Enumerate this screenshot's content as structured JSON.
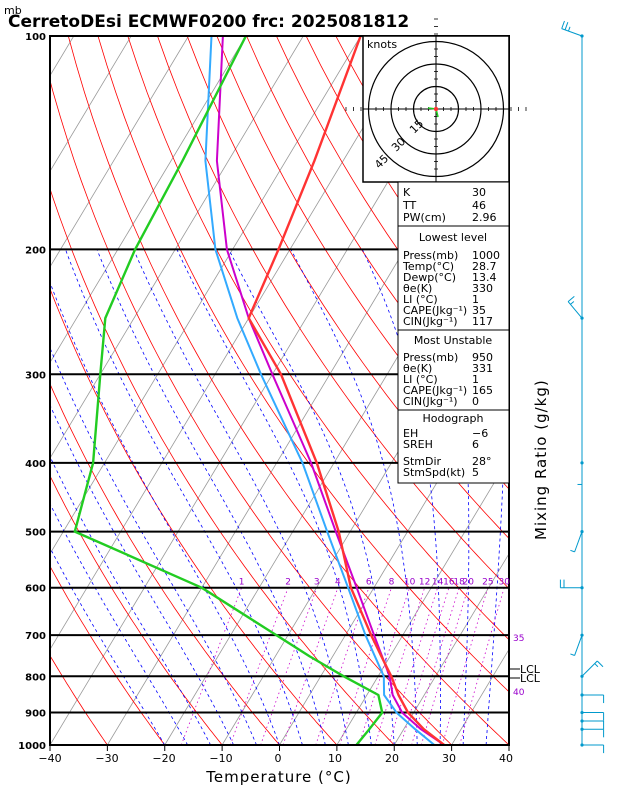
{
  "header": {
    "mb": "mb",
    "title": "CerretoDEsi ECMWF0200  frc: 2025081812"
  },
  "chart_data": {
    "type": "skew-t",
    "xlabel": "Temperature (°C)",
    "right_label": "Mixing Ratio (g/kg)",
    "xlim": [
      -40,
      40
    ],
    "x_ticks": [
      "−40",
      "−30",
      "−20",
      "−10",
      "0",
      "10",
      "20",
      "30",
      "40"
    ],
    "p_levels": [
      100,
      200,
      300,
      400,
      500,
      600,
      700,
      800,
      900,
      1000
    ],
    "p_labels": [
      "100",
      "200",
      "300",
      "400",
      "500",
      "600",
      "700",
      "800",
      "900",
      "1000"
    ],
    "temperature": {
      "p": [
        1000,
        950,
        900,
        850,
        800,
        750,
        700,
        600,
        500,
        400,
        300,
        250,
        200,
        150,
        100
      ],
      "t": [
        28.7,
        23.5,
        19.0,
        15.5,
        12.3,
        8.5,
        4.5,
        -4.0,
        -12.0,
        -23.0,
        -38.5,
        -50.0,
        -52.0,
        -55.0,
        -60.0
      ]
    },
    "dewpoint": {
      "p": [
        1000,
        950,
        900,
        850,
        800,
        750,
        700,
        600,
        500,
        400,
        300,
        250,
        200,
        150,
        100
      ],
      "t": [
        13.4,
        14.0,
        14.5,
        12.0,
        4.0,
        -4.0,
        -12.0,
        -30.0,
        -58.0,
        -62.0,
        -70.0,
        -75.0,
        -77.0,
        -78.0,
        -80.0
      ]
    },
    "parcel": {
      "p": [
        1000,
        950,
        900,
        850,
        800,
        700,
        600,
        500,
        400,
        300,
        250,
        200,
        150,
        100
      ],
      "t": [
        28.7,
        23.0,
        18.0,
        14.5,
        12.0,
        5.0,
        -3.0,
        -12.5,
        -24.0,
        -40.0,
        -50.0,
        -61.0,
        -72.0,
        -84.0
      ]
    },
    "parcel2": {
      "p": [
        1000,
        950,
        900,
        850,
        800,
        700,
        600,
        500,
        400,
        300,
        250,
        200,
        150,
        100
      ],
      "t": [
        27.0,
        22.0,
        17.0,
        13.0,
        11.0,
        3.5,
        -4.5,
        -14.0,
        -25.5,
        -42.0,
        -52.0,
        -63.0,
        -74.0,
        -86.0
      ]
    },
    "mixing_ratio_labels": [
      "1",
      "2",
      "3",
      "4",
      "6",
      "8",
      "10",
      "12",
      "14",
      "16",
      "18",
      "20",
      "25",
      "30"
    ],
    "mixing_ratio_values": [
      1,
      2,
      3,
      4,
      6,
      8,
      10,
      12,
      14,
      16,
      18,
      20,
      25,
      30
    ],
    "theta_e_labels": [
      "35",
      "40"
    ],
    "lcl_labels": [
      "LCL",
      "LCL"
    ],
    "hodograph": {
      "units": "knots",
      "ring_labels": [
        "15",
        "30",
        "45"
      ],
      "ring_values": [
        15,
        30,
        45
      ]
    },
    "wind_barbs": {
      "p": [
        100,
        250,
        400,
        500,
        600,
        700,
        800,
        850,
        900,
        925,
        950,
        1000
      ],
      "speed_kt": [
        25,
        15,
        5,
        5,
        20,
        5,
        15,
        10,
        10,
        10,
        10,
        10
      ],
      "direction_deg": [
        290,
        320,
        180,
        200,
        270,
        200,
        45,
        90,
        90,
        90,
        90,
        90
      ]
    }
  },
  "stats": {
    "K_label": "K",
    "K": "30",
    "TT_label": "TT",
    "TT": "46",
    "PW_label": "PW(cm)",
    "PW": "2.96",
    "lowest_title": "Lowest level",
    "lowest": [
      {
        "label": "Press(mb)",
        "value": "1000"
      },
      {
        "label": "Temp(°C)",
        "value": "28.7"
      },
      {
        "label": "Dewp(°C)",
        "value": "13.4"
      },
      {
        "label": "θe(K)",
        "value": "330"
      },
      {
        "label": "LI (°C)",
        "value": "1"
      },
      {
        "label": "CAPE(Jkg⁻¹)",
        "value": "35"
      },
      {
        "label": "CIN(Jkg⁻¹)",
        "value": "117"
      }
    ],
    "mu_title": "Most Unstable",
    "mu": [
      {
        "label": "Press(mb)",
        "value": "950"
      },
      {
        "label": "θe(K)",
        "value": "331"
      },
      {
        "label": "LI (°C)",
        "value": "1"
      },
      {
        "label": "CAPE(Jkg⁻¹)",
        "value": "165"
      },
      {
        "label": "CIN(Jkg⁻¹)",
        "value": "0"
      }
    ],
    "hodo_title": "Hodograph",
    "hodo": [
      {
        "label": "EH",
        "value": "−6"
      },
      {
        "label": "SREH",
        "value": "6"
      }
    ],
    "storm": [
      {
        "label": "StmDir",
        "value": "28°"
      },
      {
        "label": "StmSpd(kt)",
        "value": "5"
      }
    ]
  },
  "colors": {
    "temperature": "#ff3333",
    "dewpoint": "#22cc22",
    "parcel": "#cc00cc",
    "parcel2": "#33aaff",
    "isotherm": "#999999",
    "dry_adiabat": "#ff0000",
    "moist_adiabat": "#0000ff",
    "mixing_ratio": "#cc00cc",
    "barb": "#0099cc"
  }
}
